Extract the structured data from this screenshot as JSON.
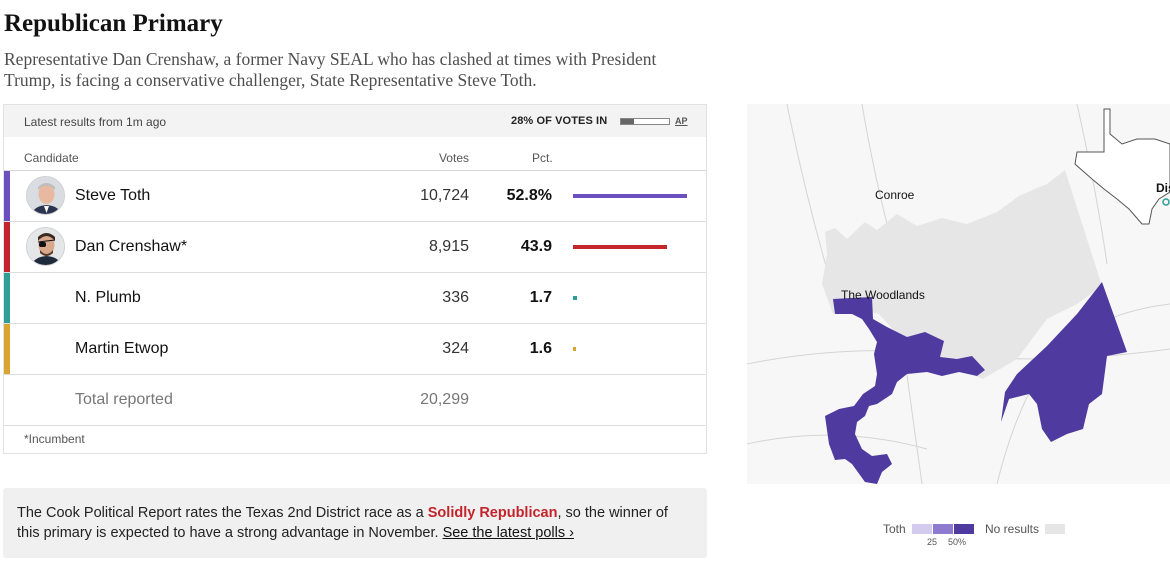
{
  "header": {
    "title": "Republican Primary",
    "dek": "Representative Dan Crenshaw, a former Navy SEAL who has clashed at times with President Trump, is facing a conservative challenger, State Representative Steve Toth."
  },
  "results": {
    "latest": "Latest results from 1m ago",
    "votes_in": "28% OF VOTES IN",
    "votes_in_fraction": 0.28,
    "source": "AP",
    "columns": {
      "candidate": "Candidate",
      "votes": "Votes",
      "pct": "Pct."
    },
    "candidates": [
      {
        "name": "Steve Toth",
        "votes": "10,724",
        "pct": "52.8%",
        "pct_value": 52.8,
        "color": "#6b4fbf",
        "avatar": "toth-photo"
      },
      {
        "name": "Dan Crenshaw*",
        "votes": "8,915",
        "pct": "43.9",
        "pct_value": 43.9,
        "color": "#c4242b",
        "avatar": "crenshaw-photo"
      },
      {
        "name": "N. Plumb",
        "votes": "336",
        "pct": "1.7",
        "pct_value": 1.7,
        "color": "#2f9e99",
        "avatar": ""
      },
      {
        "name": "Martin Etwop",
        "votes": "324",
        "pct": "1.6",
        "pct_value": 1.6,
        "color": "#d9a530",
        "avatar": ""
      }
    ],
    "total_label": "Total reported",
    "total_votes": "20,299",
    "footnote": "*Incumbent"
  },
  "note": {
    "before": "The Cook Political Report rates the Texas 2nd District race as a ",
    "rating": "Solidly Republican",
    "after": ", so the winner of this primary is expected to have a strong advantage in November. ",
    "link": "See the latest polls ›"
  },
  "map": {
    "labels": {
      "conroe": "Conroe",
      "woodlands": "The Woodlands",
      "edge": "Dis"
    },
    "district_color": "#4f3aa0",
    "no_results_color": "#e6e6e6"
  },
  "legend": {
    "candidate": "Toth",
    "tick_25": "25",
    "tick_50": "50%",
    "no_results": "No results",
    "colors": [
      "#d4ccef",
      "#8e7ad0",
      "#4f3aa0",
      "#e6e6e6"
    ]
  }
}
